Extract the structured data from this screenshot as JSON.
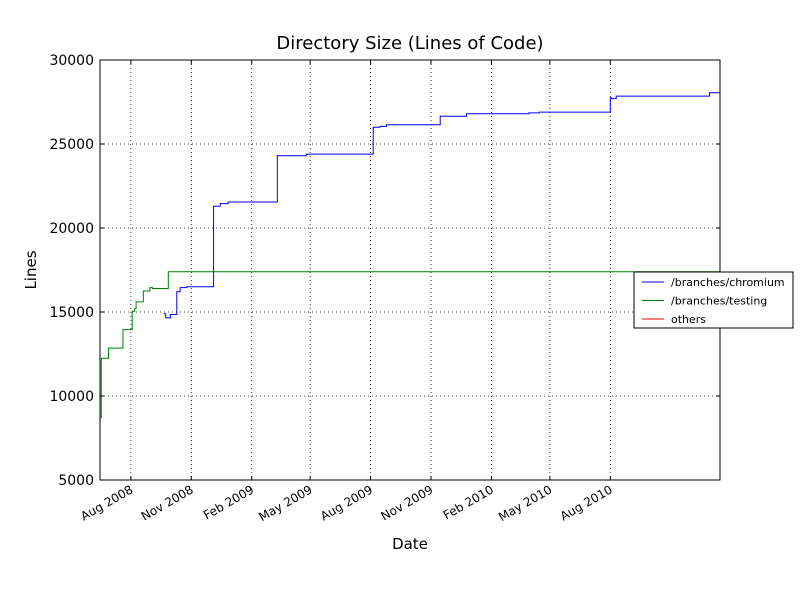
{
  "chart_data": {
    "type": "line",
    "title": "Directory Size (Lines of Code)",
    "xlabel": "Date",
    "ylabel": "Lines",
    "ylim": [
      5000,
      30000
    ],
    "xlim": [
      "2008-06-15",
      "2011-01-15"
    ],
    "yticks": [
      5000,
      10000,
      15000,
      20000,
      25000,
      30000
    ],
    "ytick_labels": [
      "5000",
      "10000",
      "15000",
      "20000",
      "25000",
      "30000"
    ],
    "xticks": [
      "2008-08-01",
      "2008-11-01",
      "2009-02-01",
      "2009-05-01",
      "2009-08-01",
      "2009-11-01",
      "2010-02-01",
      "2010-05-01",
      "2010-08-01"
    ],
    "xtick_labels": [
      "Aug 2008",
      "Nov 2008",
      "Feb 2009",
      "May 2009",
      "Aug 2009",
      "Nov 2009",
      "Feb 2010",
      "May 2010",
      "Aug 2010"
    ],
    "grid": true,
    "legend_position": "right",
    "series": [
      {
        "name": "/branches/chromium",
        "color": "#0000ff",
        "step": true,
        "points": [
          [
            "2008-09-20",
            14900
          ],
          [
            "2008-09-23",
            14650
          ],
          [
            "2008-09-30",
            14850
          ],
          [
            "2008-10-10",
            16200
          ],
          [
            "2008-10-15",
            16450
          ],
          [
            "2008-10-25",
            16500
          ],
          [
            "2008-12-05",
            21300
          ],
          [
            "2008-12-15",
            21450
          ],
          [
            "2008-12-27",
            21550
          ],
          [
            "2009-03-12",
            24300
          ],
          [
            "2009-04-25",
            24400
          ],
          [
            "2009-08-05",
            26000
          ],
          [
            "2009-08-15",
            26050
          ],
          [
            "2009-08-25",
            26150
          ],
          [
            "2009-11-15",
            26650
          ],
          [
            "2009-12-25",
            26800
          ],
          [
            "2010-03-30",
            26850
          ],
          [
            "2010-04-15",
            26900
          ],
          [
            "2010-08-01",
            27750
          ],
          [
            "2010-08-03",
            27700
          ],
          [
            "2010-08-10",
            27850
          ],
          [
            "2010-12-30",
            28050
          ],
          [
            "2011-01-15",
            28050
          ]
        ]
      },
      {
        "name": "/branches/testing",
        "color": "#008000",
        "step": true,
        "points": [
          [
            "2008-06-15",
            8700
          ],
          [
            "2008-06-17",
            12250
          ],
          [
            "2008-06-28",
            12850
          ],
          [
            "2008-07-20",
            13950
          ],
          [
            "2008-08-03",
            15050
          ],
          [
            "2008-08-07",
            15200
          ],
          [
            "2008-08-09",
            15600
          ],
          [
            "2008-08-20",
            16250
          ],
          [
            "2008-08-30",
            16450
          ],
          [
            "2008-09-03",
            16400
          ],
          [
            "2008-09-27",
            17400
          ],
          [
            "2011-01-15",
            17400
          ]
        ]
      },
      {
        "name": "others",
        "color": "#ff0000",
        "step": true,
        "points": []
      }
    ]
  }
}
